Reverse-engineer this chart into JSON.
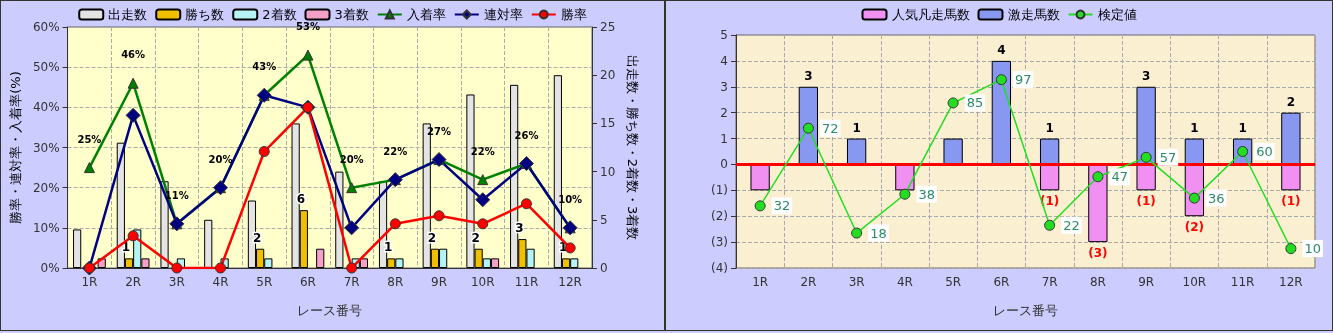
{
  "chart_data": [
    {
      "type": "bar",
      "xlabel": "レース番号",
      "ylabel": "勝率・連対率・入着率(%)",
      "y2label": "出走数・勝ち数・2着数・3着数",
      "categories": [
        "1R",
        "2R",
        "3R",
        "4R",
        "5R",
        "6R",
        "7R",
        "8R",
        "9R",
        "10R",
        "11R",
        "12R"
      ],
      "ylim": [
        0,
        60
      ],
      "yticks": [
        {
          "value": 0,
          "label": "0%"
        },
        {
          "value": 10,
          "label": "10%"
        },
        {
          "value": 20,
          "label": "20%"
        },
        {
          "value": 30,
          "label": "30%"
        },
        {
          "value": 40,
          "label": "40%"
        },
        {
          "value": 50,
          "label": "50%"
        },
        {
          "value": 60,
          "label": "60%"
        }
      ],
      "y2lim": [
        0,
        25
      ],
      "y2ticks": [
        0,
        5,
        10,
        15,
        20,
        25
      ],
      "grid": true,
      "legend": "top",
      "series": [
        {
          "name": "出走数",
          "axis": "y2",
          "color": "#e4e4e4",
          "values": [
            4,
            13,
            9,
            5,
            7,
            15,
            10,
            9,
            15,
            18,
            19,
            20
          ]
        },
        {
          "name": "勝ち数",
          "axis": "y2",
          "color": "#f0c000",
          "values": [
            0,
            1,
            0,
            0,
            2,
            6,
            0,
            1,
            2,
            2,
            3,
            1
          ],
          "value_labels": [
            null,
            "1",
            null,
            null,
            "2",
            "6",
            null,
            "1",
            "2",
            "2",
            "3",
            "1"
          ]
        },
        {
          "name": "2着数",
          "axis": "y2",
          "color": "#b4f4f4",
          "values": [
            0,
            4,
            1,
            1,
            1,
            0,
            1,
            1,
            2,
            1,
            2,
            1
          ]
        },
        {
          "name": "3着数",
          "axis": "y2",
          "color": "#f4a0c8",
          "values": [
            1,
            1,
            0,
            0,
            0,
            2,
            1,
            0,
            0,
            1,
            0,
            0
          ]
        },
        {
          "name": "入着率",
          "type": "line",
          "color": "#008000",
          "marker": "triangle",
          "values": [
            25,
            46,
            11,
            20,
            43,
            53,
            20,
            22,
            27,
            22,
            26,
            10
          ],
          "value_labels": [
            "25%",
            "46%",
            "11%",
            "20%",
            "43%",
            "53%",
            "20%",
            "22%",
            "27%",
            "22%",
            "26%",
            "10%"
          ]
        },
        {
          "name": "連対率",
          "type": "line",
          "color": "#000080",
          "marker": "diamond",
          "values": [
            0,
            38,
            11,
            20,
            43,
            40,
            10,
            22,
            27,
            17,
            26,
            10
          ]
        },
        {
          "name": "勝率",
          "type": "line",
          "color": "#ff0000",
          "marker": "circle",
          "values": [
            0,
            8,
            0,
            0,
            29,
            40,
            0,
            11,
            13,
            11,
            16,
            5
          ]
        }
      ]
    },
    {
      "type": "bar",
      "xlabel": "レース番号",
      "categories": [
        "1R",
        "2R",
        "3R",
        "4R",
        "5R",
        "6R",
        "7R",
        "8R",
        "9R",
        "10R",
        "11R",
        "12R"
      ],
      "ylim": [
        -4,
        5
      ],
      "yticks": [
        {
          "value": -4,
          "label": "(4)"
        },
        {
          "value": -3,
          "label": "(3)"
        },
        {
          "value": -2,
          "label": "(2)"
        },
        {
          "value": -1,
          "label": "(1)"
        },
        0,
        1,
        2,
        3,
        4,
        5
      ],
      "y2lim": [
        0,
        120
      ],
      "stacked": true,
      "grid": true,
      "legend": "top",
      "ref_lines": [
        {
          "axis": "y",
          "value": 0,
          "color": "#ff0000"
        }
      ],
      "series": [
        {
          "name": "人気凡走馬数",
          "color": "#f090f0",
          "values": [
            -1,
            0,
            0,
            -1,
            0,
            0,
            -1,
            -3,
            -1,
            -2,
            0,
            -1
          ],
          "value_labels": [
            null,
            null,
            null,
            null,
            null,
            null,
            "(1)",
            "(3)",
            "(1)",
            "(2)",
            null,
            "(1)"
          ]
        },
        {
          "name": "激走馬数",
          "color": "#8898f0",
          "values": [
            0,
            3,
            1,
            0,
            1,
            4,
            1,
            0,
            3,
            1,
            1,
            2
          ],
          "value_labels": [
            null,
            "3",
            "1",
            null,
            null,
            "4",
            "1",
            null,
            "3",
            "1",
            "1",
            "2"
          ]
        },
        {
          "name": "検定値",
          "type": "line",
          "axis": "y2",
          "color": "#22dd22",
          "marker": "circle",
          "values": [
            32,
            72,
            18,
            38,
            85,
            97,
            22,
            47,
            57,
            36,
            60,
            10
          ],
          "value_labels": [
            "32",
            "72",
            "18",
            "38",
            "85",
            "97",
            "22",
            "47",
            "57",
            "36",
            "60",
            "10"
          ]
        }
      ]
    }
  ]
}
